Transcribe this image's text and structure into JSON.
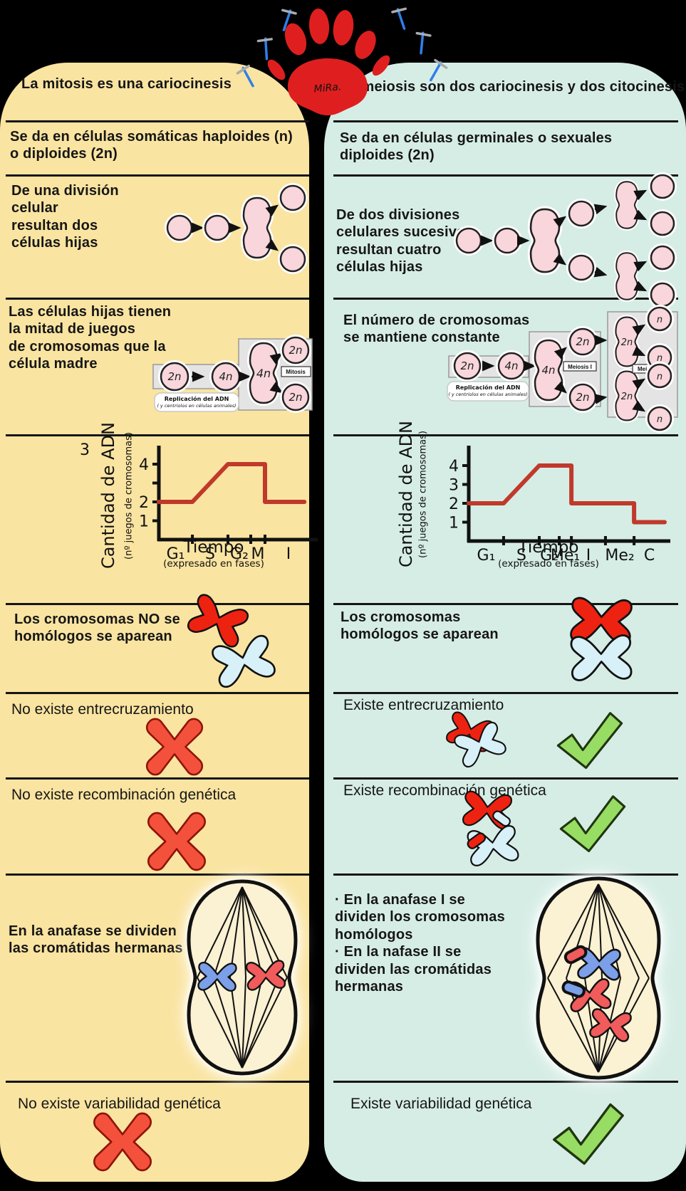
{
  "logo": {
    "text": "MiRa."
  },
  "icons": {
    "negative": "red-cross-icon",
    "positive": "green-check-icon",
    "decoration": "ice-axe-icon",
    "brand": "paw-print-logo"
  },
  "colors": {
    "left_bg": "#FAE4A1",
    "right_bg": "#D6EDE6",
    "cell_fill": "#F8D6DB",
    "chart_line": "#C0392B",
    "cross": "#F4513C",
    "check": "#97DC63",
    "chromosome_red": "#EE2211",
    "chromosome_blue": "#D8F1F8",
    "anaphase_blue": "#7B9FE8",
    "anaphase_red": "#F15B5B"
  },
  "left": {
    "header": "La mitosis es una cariocinesis",
    "cell_type": "Se da en células somáticas haploides (n)\no diploides (2n)",
    "divisions": "De una división\ncelular\nresultan dos\ncélulas hijas",
    "chromosome_sets": "Las células hijas tienen\nla mitad de juegos\nde cromosomas que la\ncélula madre",
    "pairing": "Los cromosomas NO se\nhomólogos se aparean",
    "crossing_over": "No existe entrecruzamiento",
    "recombination": "No existe recombinación genética",
    "anaphase": "En la anafase  se dividen\nlas cromátidas hermanas",
    "variability": "No existe variabilidad genética",
    "diagram": {
      "ploidy_start": "2n",
      "ploidy_replicated": "4n",
      "ploidy_dividing": "4n",
      "process_label": "Mitosis",
      "daughters": [
        "2n",
        "2n"
      ],
      "replication_title": "Replicación del ADN",
      "replication_sub": "( y centriolos en células animales)"
    }
  },
  "right": {
    "header": "La meiosis son dos  cariocinesis y dos citocinesis",
    "cell_type": "Se da en células germinales o sexuales\ndiploides (2n)",
    "divisions": "De dos divisiones\ncelulares sucesivas\nresultan cuatro\ncélulas hijas",
    "chromosome_sets": "El número de cromosomas\nse mantiene constante",
    "pairing": "Los cromosomas\nhomólogos se aparean",
    "crossing_over": "Existe entrecruzamiento",
    "recombination": "Existe recombinación genética",
    "anaphase": "· En la anafase I  se\ndividen los cromosomas\nhomólogos\n· En la nafase II se\ndividen las cromátidas\nhermanas",
    "variability": "Existe variabilidad genética",
    "diagram": {
      "ploidy_start": "2n",
      "ploidy_replicated": "4n",
      "ploidy_dividing": "4n",
      "process1_label": "Meiosis I",
      "intermediate": [
        "2n",
        "2n"
      ],
      "process2_label": "Meiosis II",
      "daughters": [
        "n",
        "n",
        "n",
        "n"
      ],
      "replication_title": "Replicación del ADN",
      "replication_sub": "( y centriolos en células animales)"
    }
  },
  "chart_data": [
    {
      "type": "line",
      "ylabel": "Cantidad de ADN",
      "ylabel_sub": "(nº juegos de cromosomas)",
      "xlabel": "Tiempo",
      "xlabel_sub": "(expresado en fases)",
      "stray_label": "3",
      "ylim": [
        0,
        4.5
      ],
      "grid": false,
      "yticks": [
        {
          "v": 1,
          "label": "1"
        },
        {
          "v": 2,
          "label": "2"
        },
        {
          "v": 3,
          "label": ""
        },
        {
          "v": 4,
          "label": "4"
        }
      ],
      "phases": [
        {
          "label": "G₁",
          "end": 0.219
        },
        {
          "label": "S",
          "end": 0.451
        },
        {
          "label": "G₂",
          "end": 0.6
        },
        {
          "label": "M",
          "end": 0.693
        },
        {
          "label": "I",
          "end": 1.0
        }
      ],
      "line": [
        [
          0,
          2
        ],
        [
          0.219,
          2
        ],
        [
          0.451,
          4
        ],
        [
          0.693,
          4
        ],
        [
          0.693,
          2
        ],
        [
          0.95,
          2
        ]
      ],
      "color": "#c0392b"
    },
    {
      "type": "line",
      "ylabel": "Cantidad de ADN",
      "ylabel_sub": "(nº juegos de cromosomas)",
      "xlabel": "Tiempo",
      "xlabel_sub": "(expresado en fases)",
      "ylim": [
        0,
        4.5
      ],
      "grid": false,
      "yticks": [
        {
          "v": 1,
          "label": "1"
        },
        {
          "v": 2,
          "label": "2"
        },
        {
          "v": 3,
          "label": "3"
        },
        {
          "v": 4,
          "label": "4"
        }
      ],
      "phases": [
        {
          "label": "G₁",
          "end": 0.178
        },
        {
          "label": "S",
          "end": 0.36
        },
        {
          "label": "G₂",
          "end": 0.462
        },
        {
          "label": "Me₁",
          "end": 0.524
        },
        {
          "label": "I",
          "end": 0.698
        },
        {
          "label": "Me₂",
          "end": 0.844
        },
        {
          "label": "C",
          "end": 1.0
        }
      ],
      "line": [
        [
          0,
          2
        ],
        [
          0.178,
          2
        ],
        [
          0.36,
          4
        ],
        [
          0.524,
          4
        ],
        [
          0.524,
          2
        ],
        [
          0.844,
          2
        ],
        [
          0.844,
          1
        ],
        [
          1.0,
          1
        ]
      ],
      "color": "#c0392b"
    }
  ]
}
